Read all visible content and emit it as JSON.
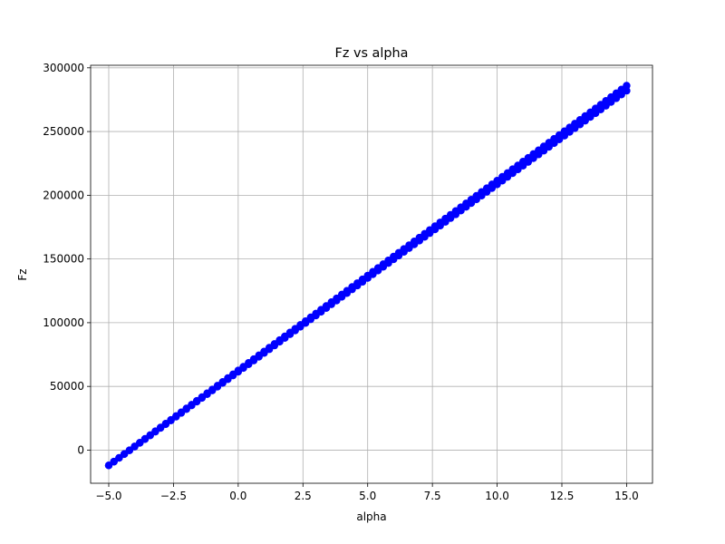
{
  "chart_data": {
    "type": "scatter",
    "title": "Fz vs alpha",
    "xlabel": "alpha",
    "ylabel": "Fz",
    "xlim": [
      -5.7,
      16.0
    ],
    "ylim": [
      -26000,
      302000
    ],
    "xticks": [
      -5.0,
      -2.5,
      0.0,
      2.5,
      5.0,
      7.5,
      10.0,
      12.5,
      15.0
    ],
    "xtick_labels": [
      "−5.0",
      "−2.5",
      "0.0",
      "2.5",
      "5.0",
      "7.5",
      "10.0",
      "12.5",
      "15.0"
    ],
    "yticks": [
      0,
      50000,
      100000,
      150000,
      200000,
      250000,
      300000
    ],
    "ytick_labels": [
      "0",
      "50000",
      "100000",
      "150000",
      "200000",
      "250000",
      "300000"
    ],
    "grid": true,
    "marker_color": "#0000ff",
    "series": [
      {
        "x_start": -5.0,
        "x_end": 15.0,
        "points_per_band": 101,
        "upper_line": {
          "y_at_x_start": -12000,
          "y_at_x_end": 286000
        },
        "lower_line": {
          "y_at_x_start": -12000,
          "y_at_x_end": 282000
        }
      }
    ]
  }
}
